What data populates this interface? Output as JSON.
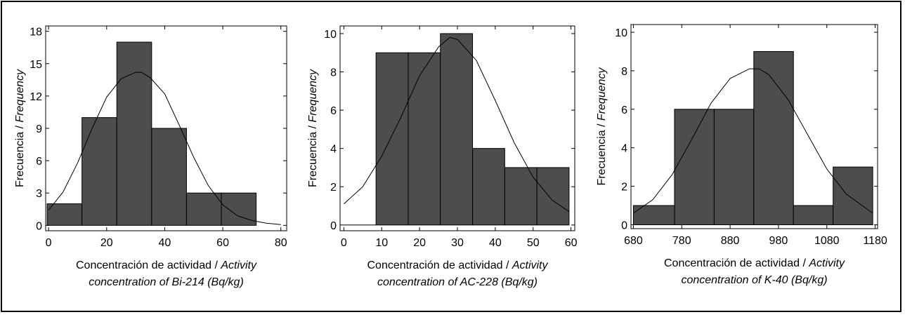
{
  "chart_data": [
    {
      "type": "bar",
      "subtype": "histogram",
      "bin_edges": [
        -0.5,
        11.5,
        23.5,
        35.5,
        47.5,
        59.5,
        71.5
      ],
      "values": [
        2,
        10,
        17,
        9,
        3,
        3
      ],
      "fit_curve": "normal",
      "fit_curve_points": [
        [
          0,
          1.4
        ],
        [
          5,
          3.1
        ],
        [
          10,
          5.8
        ],
        [
          15,
          9.0
        ],
        [
          20,
          11.9
        ],
        [
          25,
          13.6
        ],
        [
          30,
          14.2
        ],
        [
          32,
          14.2
        ],
        [
          35,
          13.7
        ],
        [
          40,
          12.2
        ],
        [
          45,
          9.3
        ],
        [
          50,
          6.3
        ],
        [
          55,
          3.7
        ],
        [
          60,
          1.9
        ],
        [
          65,
          0.9
        ],
        [
          70,
          0.45
        ],
        [
          75,
          0.2
        ],
        [
          80,
          0.07
        ]
      ],
      "xlim": [
        -1,
        82
      ],
      "ylim": [
        -0.5,
        18.5
      ],
      "xticks": [
        "0",
        "20",
        "40",
        "60",
        "80"
      ],
      "yticks": [
        "0",
        "3",
        "6",
        "9",
        "12",
        "15",
        "18"
      ],
      "ylabel_es": "Frecuencia / ",
      "ylabel_en": "Frequency",
      "xlabel_es": "Concentración de actividad / ",
      "xlabel_en_1": "Activity",
      "xlabel_en_2": "concentration of Bi-214 (Bq/kg)"
    },
    {
      "type": "bar",
      "subtype": "histogram",
      "bin_edges": [
        0,
        8.5,
        17,
        25.5,
        34,
        42.5,
        51,
        59.5
      ],
      "values": [
        0,
        9,
        9,
        10,
        4,
        3,
        3
      ],
      "fit_curve": "normal",
      "fit_curve_points": [
        [
          0,
          1.1
        ],
        [
          5,
          2.0
        ],
        [
          10,
          3.6
        ],
        [
          15,
          5.6
        ],
        [
          20,
          7.8
        ],
        [
          25,
          9.3
        ],
        [
          28,
          9.8
        ],
        [
          30,
          9.7
        ],
        [
          35,
          8.6
        ],
        [
          40,
          6.5
        ],
        [
          45,
          4.3
        ],
        [
          50,
          2.5
        ],
        [
          55,
          1.3
        ],
        [
          59.5,
          0.7
        ]
      ],
      "xlim": [
        -1,
        61
      ],
      "ylim": [
        -0.3,
        10.4
      ],
      "xticks": [
        "0",
        "10",
        "20",
        "30",
        "40",
        "50",
        "60"
      ],
      "yticks": [
        "0",
        "2",
        "4",
        "6",
        "8",
        "10"
      ],
      "ylabel_es": "Frecuencia / ",
      "ylabel_en": "Frequency",
      "xlabel_es": "Concentración de actividad / ",
      "xlabel_en_1": "Activity",
      "xlabel_en_2": "concentration of AC-228 (Bq/kg)"
    },
    {
      "type": "bar",
      "subtype": "histogram",
      "bin_edges": [
        680,
        765,
        847,
        929,
        1011,
        1093,
        1175
      ],
      "values": [
        1,
        6,
        6,
        9,
        1,
        3
      ],
      "fit_curve": "normal",
      "fit_curve_points": [
        [
          680,
          0.6
        ],
        [
          720,
          1.3
        ],
        [
          760,
          2.6
        ],
        [
          800,
          4.4
        ],
        [
          840,
          6.3
        ],
        [
          880,
          7.6
        ],
        [
          920,
          8.1
        ],
        [
          940,
          8.1
        ],
        [
          960,
          7.8
        ],
        [
          1000,
          6.5
        ],
        [
          1040,
          4.7
        ],
        [
          1080,
          2.9
        ],
        [
          1120,
          1.6
        ],
        [
          1175,
          0.6
        ]
      ],
      "xlim": [
        675,
        1185
      ],
      "ylim": [
        -0.2,
        10.4
      ],
      "xticks": [
        "680",
        "780",
        "880",
        "980",
        "1080",
        "1180"
      ],
      "yticks": [
        "0",
        "2",
        "4",
        "6",
        "8",
        "10"
      ],
      "ylabel_es": "Frecuencia / ",
      "ylabel_en": "Frequency",
      "xlabel_es": "Concentración de actividad / ",
      "xlabel_en_1": "Activity",
      "xlabel_en_2": "concentration of K-40 (Bq/kg)"
    }
  ]
}
